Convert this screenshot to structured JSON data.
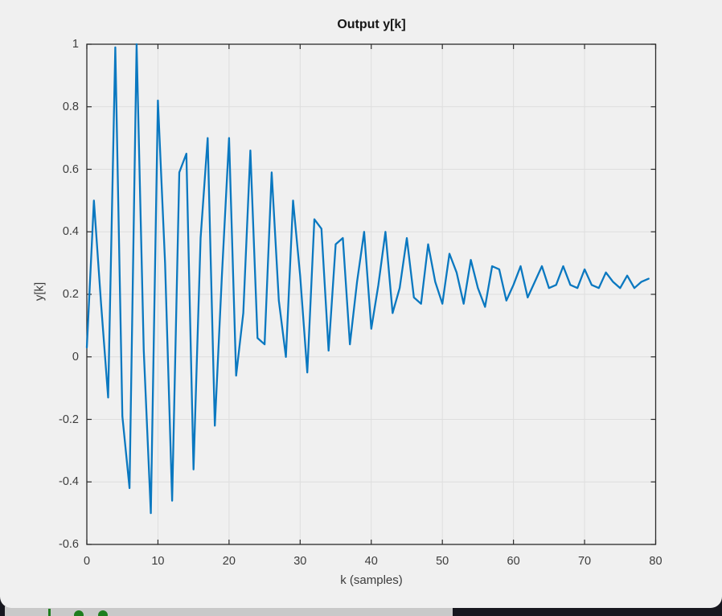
{
  "window": {
    "figure_background": "#f0f0f0",
    "frame_color": "#2b2b2b",
    "grid_color": "#dedede",
    "tick_label_color": "#3c3c3c"
  },
  "chart_data": {
    "type": "line",
    "title": "Output y[k]",
    "xlabel": "k (samples)",
    "ylabel": "y[k]",
    "xlim": [
      0,
      80
    ],
    "ylim": [
      -0.6,
      1
    ],
    "xticks": [
      0,
      10,
      20,
      30,
      40,
      50,
      60,
      70,
      80
    ],
    "xtick_labels": [
      "0",
      "10",
      "20",
      "30",
      "40",
      "50",
      "60",
      "70",
      "80"
    ],
    "yticks": [
      -0.6,
      -0.4,
      -0.2,
      0,
      0.2,
      0.4,
      0.6,
      0.8,
      1
    ],
    "ytick_labels": [
      "-0.6",
      "-0.4",
      "-0.2",
      "0",
      "0.2",
      "0.4",
      "0.6",
      "0.8",
      "1"
    ],
    "grid": true,
    "legend": "none",
    "line_color": "#0a78c0",
    "line_width": 2.3,
    "x": [
      0,
      1,
      2,
      3,
      4,
      5,
      6,
      7,
      8,
      9,
      10,
      11,
      12,
      13,
      14,
      15,
      16,
      17,
      18,
      19,
      20,
      21,
      22,
      23,
      24,
      25,
      26,
      27,
      28,
      29,
      30,
      31,
      32,
      33,
      34,
      35,
      36,
      37,
      38,
      39,
      40,
      41,
      42,
      43,
      44,
      45,
      46,
      47,
      48,
      49,
      50,
      51,
      52,
      53,
      54,
      55,
      56,
      57,
      58,
      59,
      60,
      61,
      62,
      63,
      64,
      65,
      66,
      67,
      68,
      69,
      70,
      71,
      72,
      73,
      74,
      75,
      76,
      77,
      78,
      79
    ],
    "values": [
      0.03,
      0.5,
      0.17,
      -0.13,
      0.99,
      -0.19,
      -0.42,
      1.0,
      0.02,
      -0.5,
      0.82,
      0.3,
      -0.46,
      0.59,
      0.65,
      -0.36,
      0.38,
      0.7,
      -0.22,
      0.26,
      0.7,
      -0.06,
      0.14,
      0.66,
      0.06,
      0.04,
      0.59,
      0.18,
      0.0,
      0.5,
      0.26,
      -0.05,
      0.44,
      0.41,
      0.02,
      0.36,
      0.38,
      0.04,
      0.24,
      0.4,
      0.09,
      0.23,
      0.4,
      0.14,
      0.22,
      0.38,
      0.19,
      0.17,
      0.36,
      0.24,
      0.17,
      0.33,
      0.27,
      0.17,
      0.31,
      0.22,
      0.16,
      0.29,
      0.28,
      0.18,
      0.23,
      0.29,
      0.19,
      0.24,
      0.29,
      0.22,
      0.23,
      0.29,
      0.23,
      0.22,
      0.28,
      0.23,
      0.22,
      0.27,
      0.24,
      0.22,
      0.26,
      0.22,
      0.24,
      0.25
    ],
    "steady_state_value": 0.25
  },
  "taskbar": {
    "left_bg": "#c9c9c9",
    "right_bg": "#17171f",
    "accent_green": "#1e7e1e"
  }
}
